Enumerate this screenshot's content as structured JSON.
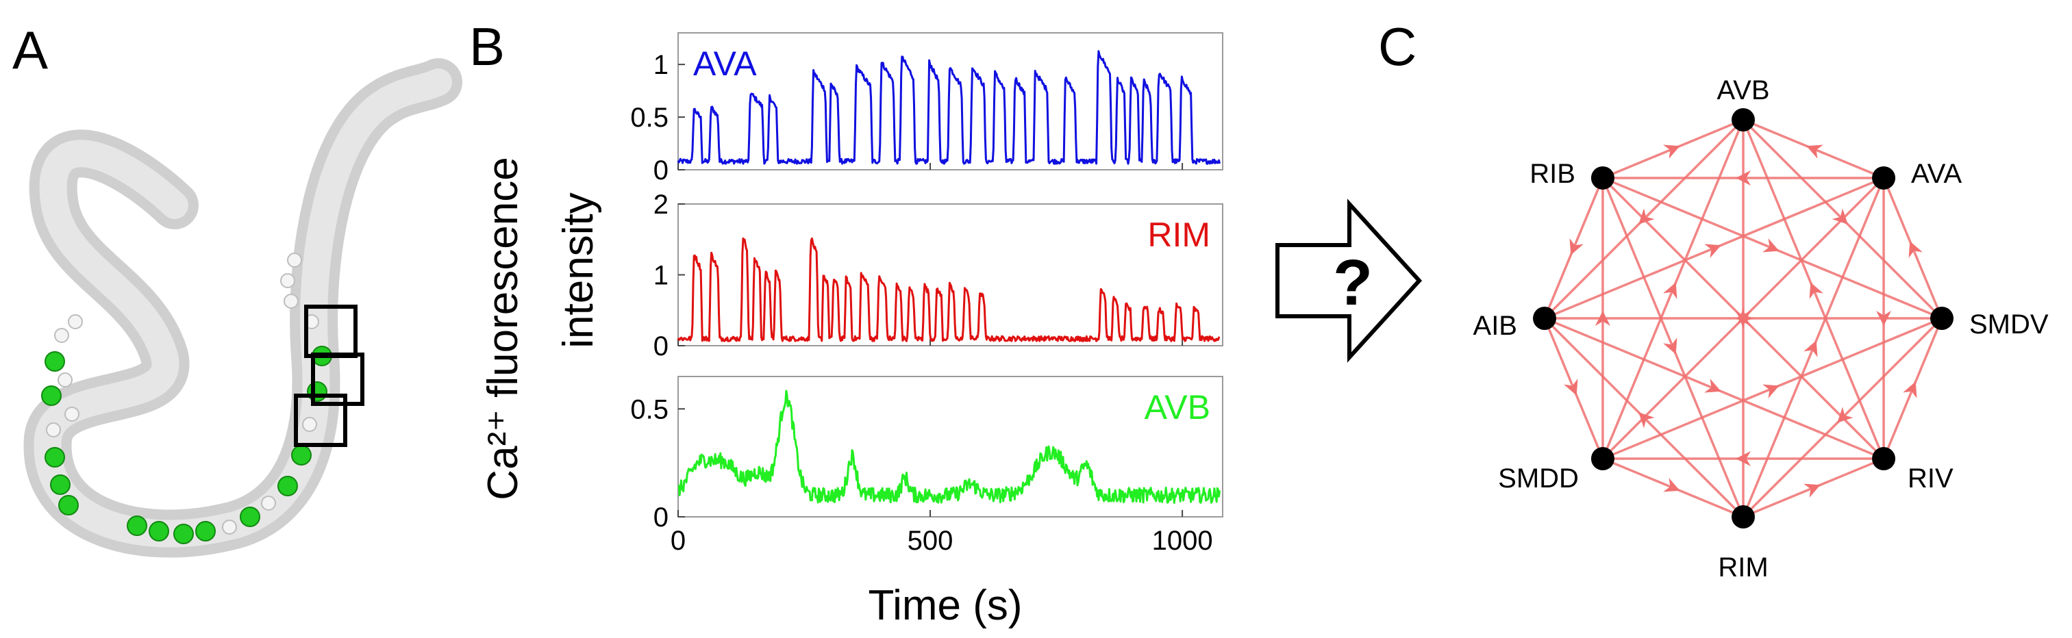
{
  "panels": {
    "a_label": "A",
    "b_label": "B",
    "c_label": "C"
  },
  "colors": {
    "ava": "#1010e0",
    "rim": "#e01010",
    "avb": "#22ee22",
    "edge": "#f07070",
    "worm_body": "#d4d4d4",
    "worm_outline": "#b8b8b8",
    "neuron_green": "#22cc22"
  },
  "arrow": {
    "symbol": "?"
  },
  "chart_data": {
    "type": "line",
    "xlabel": "Time (s)",
    "ylabel_line1": "Ca²⁺ fluorescence",
    "ylabel_line2": "intensity",
    "xlim": [
      0,
      1080
    ],
    "xticks": [
      "0",
      "500",
      "1000"
    ],
    "xtick_values": [
      0,
      500,
      1000
    ],
    "series": [
      {
        "name": "AVA",
        "color": "#1010e0",
        "ylim": [
          0,
          1.3
        ],
        "yticks": [
          "0",
          "0.5",
          "1"
        ],
        "ytick_values": [
          0,
          0.5,
          1
        ],
        "baseline": 0.08,
        "pulses": [
          [
            28,
            48,
            0.6
          ],
          [
            62,
            82,
            0.62
          ],
          [
            140,
            170,
            0.75
          ],
          [
            178,
            198,
            0.72
          ],
          [
            265,
            295,
            0.95
          ],
          [
            300,
            320,
            0.85
          ],
          [
            350,
            385,
            1.0
          ],
          [
            400,
            430,
            1.05
          ],
          [
            440,
            470,
            1.1
          ],
          [
            495,
            520,
            1.05
          ],
          [
            535,
            565,
            1.0
          ],
          [
            580,
            610,
            1.0
          ],
          [
            625,
            650,
            0.95
          ],
          [
            665,
            690,
            0.9
          ],
          [
            705,
            735,
            0.95
          ],
          [
            765,
            790,
            0.9
          ],
          [
            830,
            860,
            1.15
          ],
          [
            868,
            888,
            0.9
          ],
          [
            895,
            915,
            0.9
          ],
          [
            920,
            940,
            0.88
          ],
          [
            950,
            980,
            0.95
          ],
          [
            995,
            1020,
            0.9
          ]
        ]
      },
      {
        "name": "RIM",
        "color": "#e01010",
        "ylim": [
          0,
          2
        ],
        "yticks": [
          "0",
          "1",
          "2"
        ],
        "ytick_values": [
          0,
          1,
          2
        ],
        "baseline": 0.1,
        "pulses": [
          [
            28,
            48,
            1.35
          ],
          [
            62,
            82,
            1.35
          ],
          [
            125,
            140,
            1.65
          ],
          [
            148,
            165,
            1.3
          ],
          [
            170,
            185,
            1.1
          ],
          [
            190,
            205,
            1.1
          ],
          [
            260,
            278,
            1.6
          ],
          [
            285,
            300,
            1.05
          ],
          [
            305,
            320,
            1.0
          ],
          [
            330,
            345,
            1.0
          ],
          [
            360,
            380,
            1.05
          ],
          [
            395,
            415,
            1.0
          ],
          [
            430,
            445,
            0.9
          ],
          [
            455,
            470,
            0.85
          ],
          [
            485,
            500,
            0.9
          ],
          [
            510,
            525,
            0.85
          ],
          [
            535,
            550,
            0.9
          ],
          [
            565,
            580,
            0.85
          ],
          [
            595,
            610,
            0.8
          ],
          [
            835,
            850,
            0.85
          ],
          [
            860,
            875,
            0.7
          ],
          [
            885,
            900,
            0.6
          ],
          [
            920,
            935,
            0.6
          ],
          [
            950,
            965,
            0.55
          ],
          [
            985,
            1000,
            0.6
          ],
          [
            1020,
            1035,
            0.55
          ]
        ]
      },
      {
        "name": "AVB",
        "color": "#22ee22",
        "ylim": [
          0,
          0.65
        ],
        "yticks": [
          "0",
          "0.5"
        ],
        "ytick_values": [
          0,
          0.5
        ],
        "baseline": 0.1,
        "bumps": [
          [
            40,
            30,
            0.12
          ],
          [
            90,
            40,
            0.15
          ],
          [
            160,
            25,
            0.1
          ],
          [
            215,
            22,
            0.45
          ],
          [
            345,
            12,
            0.18
          ],
          [
            450,
            10,
            0.08
          ],
          [
            580,
            20,
            0.05
          ],
          [
            740,
            45,
            0.2
          ],
          [
            810,
            15,
            0.12
          ]
        ]
      }
    ]
  },
  "network": {
    "nodes": [
      {
        "name": "AVB"
      },
      {
        "name": "AVA"
      },
      {
        "name": "SMDV"
      },
      {
        "name": "RIV"
      },
      {
        "name": "RIM"
      },
      {
        "name": "SMDD"
      },
      {
        "name": "AIB"
      },
      {
        "name": "RIB"
      }
    ]
  }
}
